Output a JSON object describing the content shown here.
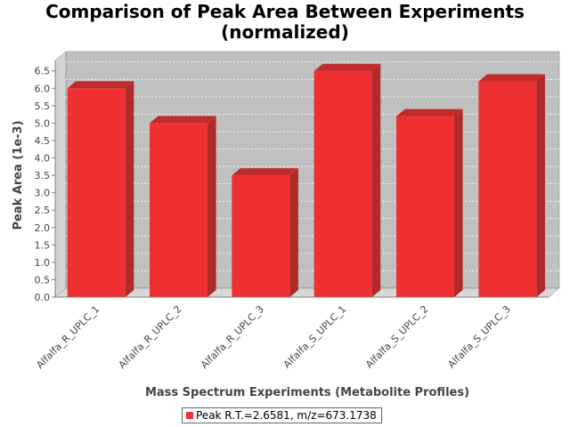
{
  "chart_data": {
    "type": "bar",
    "title": "Comparison of Peak Area Between Experiments",
    "subtitle": "(normalized)",
    "xlabel": "Mass Spectrum Experiments (Metabolite Profiles)",
    "ylabel": "Peak Area (1e-3)",
    "ylim": [
      0,
      6.8
    ],
    "yticks": [
      "0.0",
      "0.5",
      "1.0",
      "1.5",
      "2.0",
      "2.5",
      "3.0",
      "3.5",
      "4.0",
      "4.5",
      "5.0",
      "5.5",
      "6.0",
      "6.5"
    ],
    "categories": [
      "Alfalfa_R_UPLC_1",
      "Alfalfa_R_UPLC_2",
      "Alfalfa_R_UPLC_3",
      "Alfalfa_S_UPLC_1",
      "Alfalfa_S_UPLC_2",
      "Alfalfa_S_UPLC_3"
    ],
    "series": [
      {
        "name": "Peak R.T.=2.6581, m/z=673.1738",
        "values": [
          6.0,
          5.0,
          3.5,
          6.5,
          5.2,
          6.2
        ]
      }
    ],
    "grid": true,
    "legend_position": "bottom",
    "colors": {
      "bar": "#f03030",
      "plot_background": "#c0c0c0",
      "gridline": "#ffffff"
    }
  }
}
